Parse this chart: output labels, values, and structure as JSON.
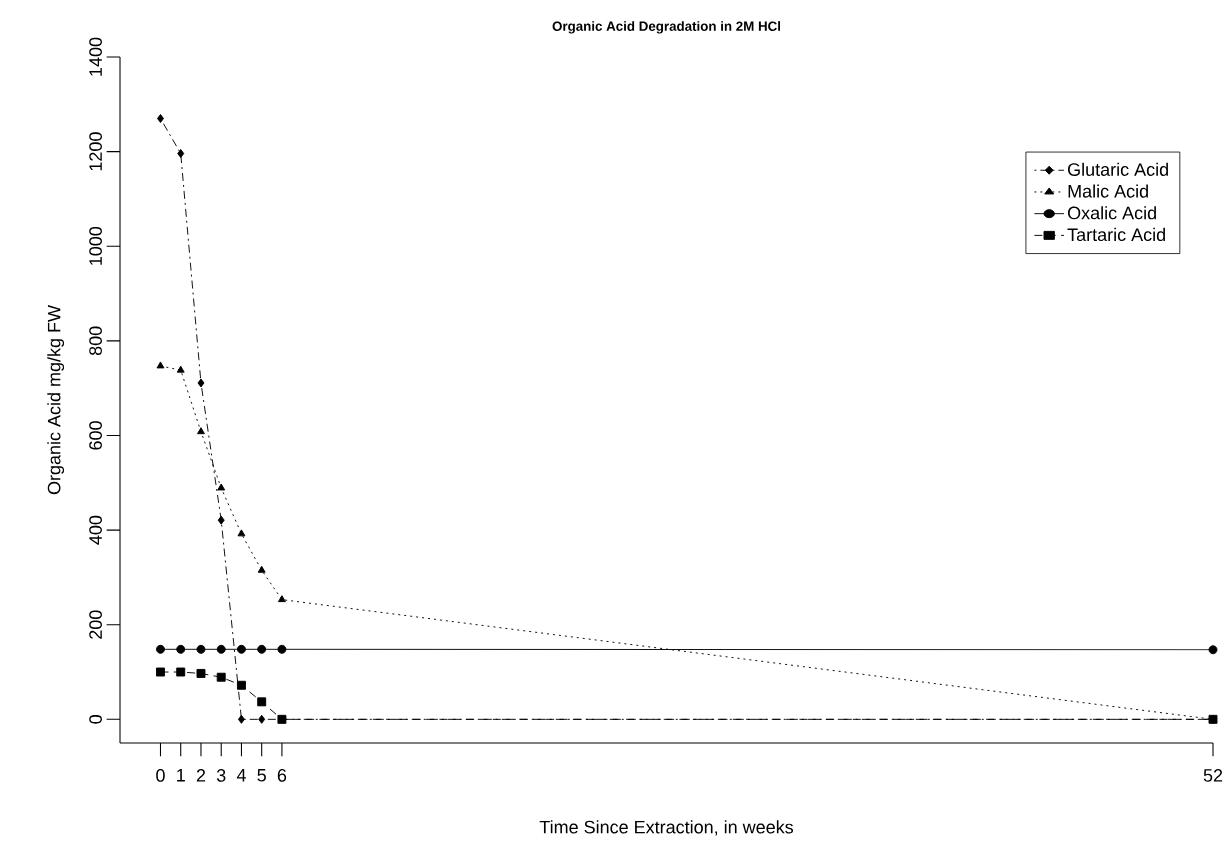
{
  "chart_data": {
    "type": "line",
    "title": "Organic Acid Degradation in 2M HCl",
    "xlabel": "Time Since Extraction, in weeks",
    "ylabel": "Organic Acid mg/kg FW",
    "x": [
      0,
      1,
      2,
      3,
      4,
      5,
      6,
      52
    ],
    "series": [
      {
        "name": "Glutaric Acid",
        "color": "#000000",
        "marker": "diamond",
        "line_style": "dashdot",
        "values": [
          1270,
          1196,
          711,
          421,
          0,
          0,
          0,
          0
        ]
      },
      {
        "name": "Malic Acid",
        "color": "#000000",
        "marker": "triangle",
        "line_style": "dotted",
        "values": [
          747,
          738,
          608,
          489,
          392,
          315,
          253,
          0
        ]
      },
      {
        "name": "Oxalic Acid",
        "color": "#000000",
        "marker": "circle",
        "line_style": "solid",
        "values": [
          148,
          148,
          148,
          148,
          148,
          148,
          148,
          147
        ]
      },
      {
        "name": "Tartaric Acid",
        "color": "#000000",
        "marker": "square",
        "line_style": "dashed",
        "values": [
          100,
          100,
          97,
          89,
          72,
          37,
          0,
          0
        ]
      }
    ],
    "xlim": [
      -2,
      52
    ],
    "ylim": [
      -50,
      1400
    ],
    "xticks": [
      0,
      1,
      2,
      3,
      4,
      5,
      6,
      52
    ],
    "yticks": [
      0,
      200,
      400,
      600,
      800,
      1000,
      1200,
      1400
    ],
    "legend": "top right",
    "grid": false
  }
}
